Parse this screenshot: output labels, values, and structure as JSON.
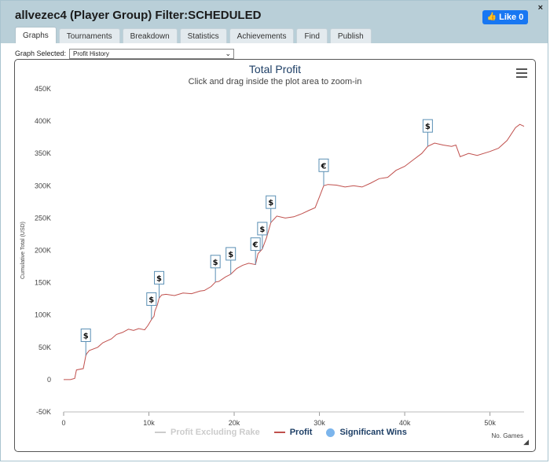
{
  "window": {
    "title": "allvezec4 (Player Group) Filter:SCHEDULED",
    "close_glyph": "×",
    "like_label": "Like 0"
  },
  "tabs": [
    {
      "label": "Graphs",
      "active": true
    },
    {
      "label": "Tournaments"
    },
    {
      "label": "Breakdown"
    },
    {
      "label": "Statistics"
    },
    {
      "label": "Achievements"
    },
    {
      "label": "Find"
    },
    {
      "label": "Publish"
    }
  ],
  "graph_select": {
    "label": "Graph Selected:",
    "value": "Profit History"
  },
  "colors": {
    "profit": "#c0504d",
    "excluding_rake": "#cccccc",
    "significant_wins": "#7cb5ec",
    "title": "#1e3f66",
    "flag_border": "#5a8fb4"
  },
  "chart_data": {
    "type": "line",
    "title": "Total Profit",
    "subtitle": "Click and drag inside the plot area to zoom-in",
    "ylabel": "Cumulative Total (USD)",
    "xlabel": "No. Games",
    "xlim": [
      0,
      54000
    ],
    "ylim": [
      -50000,
      450000
    ],
    "x_ticks": [
      0,
      10000,
      20000,
      30000,
      40000,
      50000
    ],
    "x_tick_labels": [
      "0",
      "10k",
      "20k",
      "30k",
      "40k",
      "50k"
    ],
    "y_ticks": [
      -50000,
      0,
      50000,
      100000,
      150000,
      200000,
      250000,
      300000,
      350000,
      400000,
      450000
    ],
    "y_tick_labels": [
      "-50K",
      "0",
      "50K",
      "100K",
      "150K",
      "200K",
      "250K",
      "300K",
      "350K",
      "400K",
      "450K"
    ],
    "legend_position": "bottom",
    "series": [
      {
        "name": "Profit Excluding Rake",
        "hidden": true,
        "x": [],
        "y": []
      },
      {
        "name": "Profit",
        "x": [
          0,
          800,
          1300,
          1500,
          2300,
          2600,
          2700,
          3000,
          4000,
          4600,
          5100,
          5600,
          6200,
          6900,
          7600,
          8200,
          8800,
          9500,
          9900,
          10300,
          10600,
          10700,
          11000,
          11200,
          11500,
          12000,
          13000,
          14000,
          15000,
          16000,
          16500,
          17300,
          17800,
          18200,
          19000,
          19600,
          20300,
          21000,
          21700,
          22500,
          22800,
          23300,
          23800,
          24300,
          25000,
          26000,
          27000,
          28000,
          28800,
          29500,
          30000,
          30500,
          31000,
          32000,
          33000,
          34000,
          35000,
          36000,
          37000,
          38000,
          39000,
          40000,
          41000,
          42000,
          42700,
          43500,
          44500,
          45500,
          46000,
          46500,
          47500,
          48500,
          50000,
          51000,
          52000,
          53000,
          53500,
          54000
        ],
        "y": [
          0,
          0,
          2000,
          15000,
          17000,
          37000,
          40000,
          45000,
          50000,
          57000,
          60000,
          63000,
          70000,
          73000,
          78000,
          76000,
          79000,
          77000,
          84000,
          93000,
          98000,
          106000,
          116000,
          126000,
          131000,
          132000,
          130000,
          134000,
          133000,
          137000,
          138000,
          144000,
          151000,
          152000,
          159000,
          163000,
          172000,
          177000,
          180000,
          178000,
          195000,
          202000,
          220000,
          243000,
          253000,
          250000,
          252000,
          257000,
          262000,
          266000,
          283000,
          300000,
          302000,
          301000,
          298000,
          300000,
          298000,
          304000,
          311000,
          313000,
          324000,
          330000,
          340000,
          350000,
          361000,
          366000,
          363000,
          361000,
          363000,
          345000,
          350000,
          347000,
          353000,
          358000,
          370000,
          390000,
          395000,
          392000
        ]
      }
    ],
    "significant_wins": [
      {
        "x": 2600,
        "y": 37000,
        "symbol": "$"
      },
      {
        "x": 10300,
        "y": 93000,
        "symbol": "$"
      },
      {
        "x": 11200,
        "y": 126000,
        "symbol": "$"
      },
      {
        "x": 17800,
        "y": 151000,
        "symbol": "$"
      },
      {
        "x": 19600,
        "y": 163000,
        "symbol": "$"
      },
      {
        "x": 22500,
        "y": 178000,
        "symbol": "€"
      },
      {
        "x": 23300,
        "y": 202000,
        "symbol": "$"
      },
      {
        "x": 24300,
        "y": 243000,
        "symbol": "$"
      },
      {
        "x": 30500,
        "y": 300000,
        "symbol": "€"
      },
      {
        "x": 42700,
        "y": 361000,
        "symbol": "$"
      }
    ]
  }
}
